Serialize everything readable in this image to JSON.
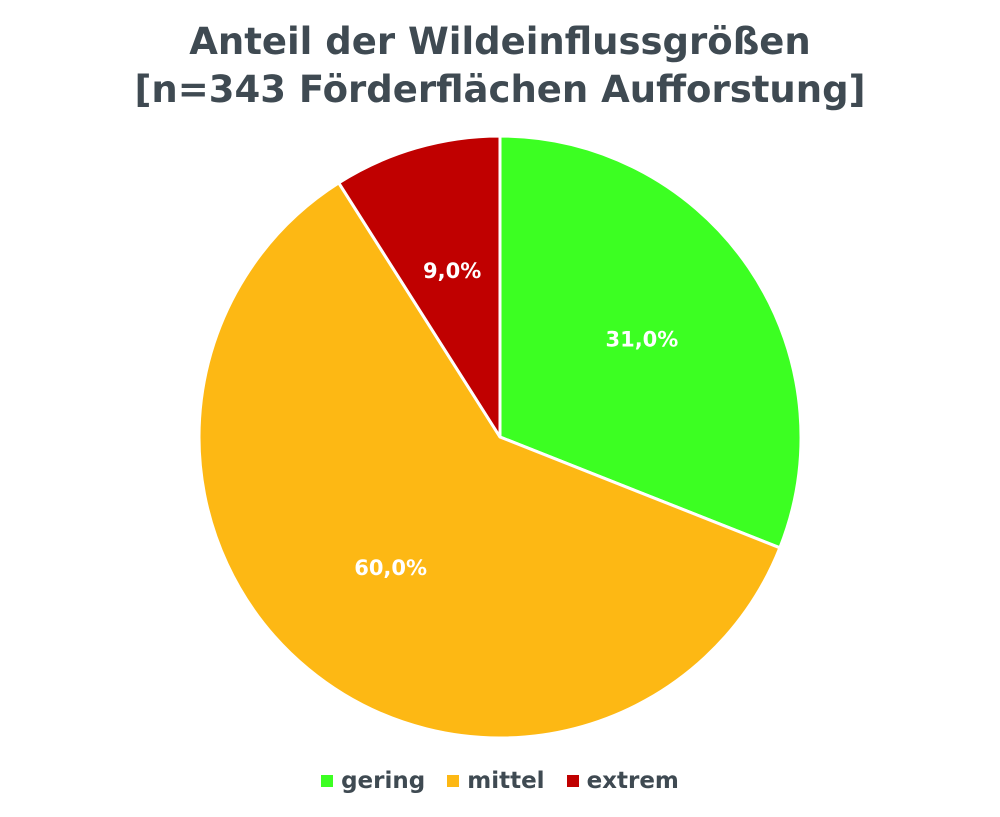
{
  "chart_data": {
    "type": "pie",
    "title": "Anteil der Wildeinflussgrößen",
    "subtitle": "[n=343 Förderflächen Aufforstung]",
    "categories": [
      "gering",
      "mittel",
      "extrem"
    ],
    "values": [
      31.0,
      60.0,
      9.0
    ],
    "data_labels": [
      "31,0%",
      "60,0%",
      "9,0%"
    ],
    "colors": [
      "#3cff22",
      "#fdb814",
      "#c00000"
    ],
    "legend_position": "bottom"
  }
}
